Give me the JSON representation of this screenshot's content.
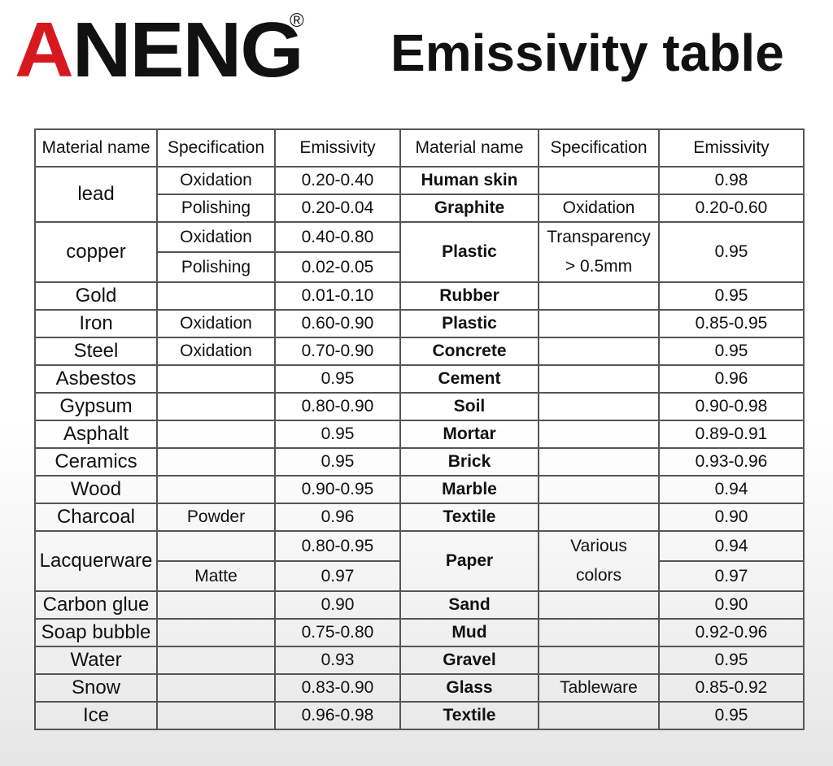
{
  "header": {
    "logo": "ANENG",
    "registered": "®",
    "title": "Emissivity table"
  },
  "table": {
    "columns": [
      "Material name",
      "Specification",
      "Emissivity",
      "Material name",
      "Specification",
      "Emissivity"
    ],
    "left": [
      {
        "material": "lead",
        "rows": [
          {
            "specification": "Oxidation",
            "emissivity": "0.20-0.40"
          },
          {
            "specification": "Polishing",
            "emissivity": "0.20-0.04"
          }
        ]
      },
      {
        "material": "copper",
        "rows": [
          {
            "specification": "Oxidation",
            "emissivity": "0.40-0.80"
          },
          {
            "specification": "Polishing",
            "emissivity": "0.02-0.05"
          }
        ]
      },
      {
        "material": "Gold",
        "emissivity": "0.01-0.10"
      },
      {
        "material": "Iron",
        "specification": "Oxidation",
        "emissivity": "0.60-0.90"
      },
      {
        "material": "Steel",
        "specification": "Oxidation",
        "emissivity": "0.70-0.90"
      },
      {
        "material": "Asbestos",
        "emissivity": "0.95"
      },
      {
        "material": "Gypsum",
        "emissivity": "0.80-0.90"
      },
      {
        "material": "Asphalt",
        "emissivity": "0.95"
      },
      {
        "material": "Ceramics",
        "emissivity": "0.95"
      },
      {
        "material": "Wood",
        "emissivity": "0.90-0.95"
      },
      {
        "material": "Charcoal",
        "specification": "Powder",
        "emissivity": "0.96"
      },
      {
        "material": "Lacquerware",
        "rows": [
          {
            "emissivity": "0.80-0.95"
          },
          {
            "specification": "Matte",
            "emissivity": "0.97"
          }
        ]
      },
      {
        "material": "Carbon glue",
        "emissivity": "0.90"
      },
      {
        "material": "Soap bubble",
        "emissivity": "0.75-0.80"
      },
      {
        "material": "Water",
        "emissivity": "0.93"
      },
      {
        "material": "Snow",
        "emissivity": "0.83-0.90"
      },
      {
        "material": "Ice",
        "emissivity": "0.96-0.98"
      }
    ],
    "right": [
      {
        "material": "Human skin",
        "emissivity": "0.98"
      },
      {
        "material": "Graphite",
        "specification": "Oxidation",
        "emissivity": "0.20-0.60"
      },
      {
        "material": "Plastic",
        "specification": [
          "Transparency",
          "> 0.5mm"
        ],
        "emissivity": "0.95"
      },
      {
        "material": "Rubber",
        "emissivity": "0.95"
      },
      {
        "material": "Plastic",
        "emissivity": "0.85-0.95"
      },
      {
        "material": "Concrete",
        "emissivity": "0.95"
      },
      {
        "material": "Cement",
        "emissivity": "0.96"
      },
      {
        "material": "Soil",
        "emissivity": "0.90-0.98"
      },
      {
        "material": "Mortar",
        "emissivity": "0.89-0.91"
      },
      {
        "material": "Brick",
        "emissivity": "0.93-0.96"
      },
      {
        "material": "Marble",
        "emissivity": "0.94"
      },
      {
        "material": "Textile",
        "emissivity": "0.90"
      },
      {
        "material": "Paper",
        "specification": [
          "Various",
          "colors"
        ],
        "rows": [
          {
            "emissivity": "0.94"
          },
          {
            "emissivity": "0.97"
          }
        ]
      },
      {
        "material": "Sand",
        "emissivity": "0.90"
      },
      {
        "material": "Mud",
        "emissivity": "0.92-0.96"
      },
      {
        "material": "Gravel",
        "emissivity": "0.95"
      },
      {
        "material": "Glass",
        "specification": "Tableware",
        "emissivity": "0.85-0.92"
      },
      {
        "material": "Textile",
        "emissivity": "0.95"
      }
    ]
  }
}
